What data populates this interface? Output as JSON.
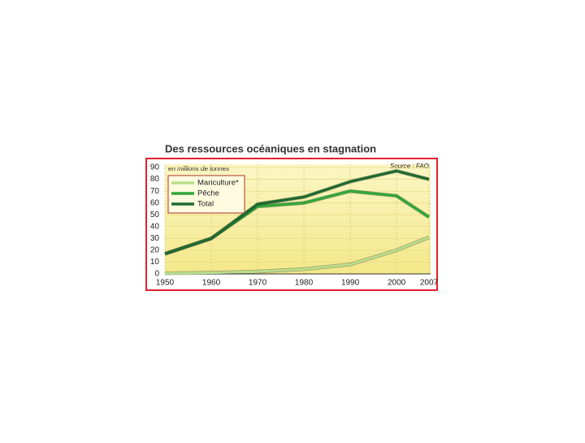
{
  "chart_data": {
    "type": "line",
    "title": "Des ressources océaniques en stagnation",
    "subtitle": "en millions de tonnes",
    "source": "Source : FAO.",
    "x": [
      1950,
      1960,
      1970,
      1980,
      1990,
      2000,
      2007
    ],
    "xlim": [
      1950,
      2007
    ],
    "xticks": [
      1950,
      1960,
      1970,
      1980,
      1990,
      2000,
      2007
    ],
    "ylim": [
      0,
      90
    ],
    "yticks": [
      0,
      10,
      20,
      30,
      40,
      50,
      60,
      70,
      80,
      90
    ],
    "grid": true,
    "legend": "upper left",
    "series": [
      {
        "name": "Mariculture*",
        "color": "#b9dc8c",
        "values": [
          0.5,
          1,
          2,
          4,
          8,
          20,
          31
        ]
      },
      {
        "name": "Pêche",
        "color": "#2fa83a",
        "values": [
          17,
          30,
          57,
          60,
          70,
          66,
          48
        ]
      },
      {
        "name": "Total",
        "color": "#1f6a30",
        "values": [
          17,
          30,
          59,
          65,
          78,
          87,
          80
        ]
      }
    ]
  }
}
